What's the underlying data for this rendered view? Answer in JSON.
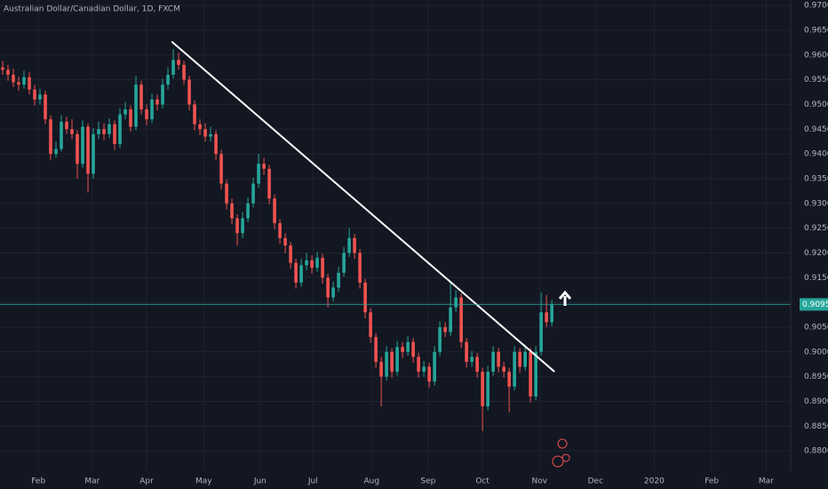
{
  "chart_data": {
    "type": "candlestick",
    "title": "Australian Dollar/Canadian Dollar, 1D, FXCM",
    "up_color": "#26a69a",
    "down_color": "#ef5350",
    "grid": true,
    "xlim": [
      -0.5,
      147.8
    ],
    "ylim": [
      0.8723,
      0.9711
    ],
    "xticks": [
      {
        "value": 6.7,
        "label": "Feb"
      },
      {
        "value": 16.8,
        "label": "Mar"
      },
      {
        "value": 27,
        "label": "Apr"
      },
      {
        "value": 37.7,
        "label": "May"
      },
      {
        "value": 48.3,
        "label": "Jun"
      },
      {
        "value": 58.2,
        "label": "Jul"
      },
      {
        "value": 69.2,
        "label": "Aug"
      },
      {
        "value": 79.8,
        "label": "Sep"
      },
      {
        "value": 90,
        "label": "Oct"
      },
      {
        "value": 100.7,
        "label": "Nov"
      },
      {
        "value": 111.2,
        "label": "Dec"
      },
      {
        "value": 122.2,
        "label": "2020"
      },
      {
        "value": 133,
        "label": "Feb"
      },
      {
        "value": 143.2,
        "label": "Mar"
      }
    ],
    "yticks": [
      {
        "value": 0.97,
        "label": "0.97000"
      },
      {
        "value": 0.965,
        "label": "0.96500"
      },
      {
        "value": 0.96,
        "label": "0.96000"
      },
      {
        "value": 0.955,
        "label": "0.95500"
      },
      {
        "value": 0.95,
        "label": "0.95000"
      },
      {
        "value": 0.945,
        "label": "0.94500"
      },
      {
        "value": 0.94,
        "label": "0.94000"
      },
      {
        "value": 0.935,
        "label": "0.93500"
      },
      {
        "value": 0.93,
        "label": "0.93000"
      },
      {
        "value": 0.925,
        "label": "0.92500"
      },
      {
        "value": 0.92,
        "label": "0.92000"
      },
      {
        "value": 0.915,
        "label": "0.91500"
      },
      {
        "value": 0.91,
        "label": "0.91000"
      },
      {
        "value": 0.905,
        "label": "0.90500"
      },
      {
        "value": 0.9,
        "label": "0.90000"
      },
      {
        "value": 0.895,
        "label": "0.89500"
      },
      {
        "value": 0.89,
        "label": "0.89000"
      },
      {
        "value": 0.885,
        "label": "0.88500"
      },
      {
        "value": 0.88,
        "label": "0.88000"
      }
    ],
    "open": [
      0.9575,
      0.957,
      0.956,
      0.9545,
      0.954,
      0.9555,
      0.953,
      0.951,
      0.952,
      0.947,
      0.94,
      0.941,
      0.9465,
      0.945,
      0.944,
      0.938,
      0.9455,
      0.936,
      0.944,
      0.945,
      0.944,
      0.946,
      0.942,
      0.948,
      0.949,
      0.9455,
      0.954,
      0.949,
      0.947,
      0.951,
      0.95,
      0.954,
      0.956,
      0.959,
      0.958,
      0.955,
      0.95,
      0.946,
      0.945,
      0.9435,
      0.944,
      0.94,
      0.934,
      0.93,
      0.927,
      0.924,
      0.927,
      0.93,
      0.934,
      0.938,
      0.937,
      0.931,
      0.926,
      0.923,
      0.9215,
      0.918,
      0.914,
      0.9175,
      0.9185,
      0.917,
      0.919,
      0.915,
      0.911,
      0.913,
      0.916,
      0.92,
      0.923,
      0.92,
      0.914,
      0.908,
      0.903,
      0.898,
      0.895,
      0.9,
      0.896,
      0.901,
      0.9,
      0.902,
      0.899,
      0.896,
      0.897,
      0.894,
      0.9,
      0.905,
      0.904,
      0.909,
      0.911,
      0.902,
      0.898,
      0.899,
      0.896,
      0.889,
      0.896,
      0.9,
      0.897,
      0.896,
      0.893,
      0.9,
      0.897,
      0.9,
      0.891,
      0.9,
      0.908,
      0.906
    ],
    "high": [
      0.9588,
      0.958,
      0.9572,
      0.9556,
      0.9568,
      0.9565,
      0.954,
      0.9532,
      0.9528,
      0.9478,
      0.9425,
      0.9478,
      0.9475,
      0.947,
      0.9448,
      0.9468,
      0.9462,
      0.9452,
      0.9465,
      0.9462,
      0.9472,
      0.9468,
      0.9492,
      0.9505,
      0.9498,
      0.9558,
      0.9548,
      0.95,
      0.9522,
      0.952,
      0.9552,
      0.9575,
      0.9612,
      0.9605,
      0.9588,
      0.9558,
      0.9508,
      0.947,
      0.9462,
      0.9455,
      0.9448,
      0.9408,
      0.9348,
      0.931,
      0.9278,
      0.9282,
      0.9312,
      0.9352,
      0.94,
      0.9392,
      0.9378,
      0.9318,
      0.9268,
      0.924,
      0.9222,
      0.9188,
      0.9188,
      0.92,
      0.9195,
      0.9202,
      0.9198,
      0.9158,
      0.9142,
      0.9172,
      0.9212,
      0.925,
      0.9238,
      0.9208,
      0.9148,
      0.9088,
      0.9038,
      0.899,
      0.9012,
      0.9008,
      0.9022,
      0.902,
      0.9032,
      0.9028,
      0.8998,
      0.8982,
      0.8978,
      0.9012,
      0.9062,
      0.906,
      0.914,
      0.9125,
      0.9118,
      0.9028,
      0.9002,
      0.8998,
      0.8968,
      0.8972,
      0.9012,
      0.9008,
      0.898,
      0.8968,
      0.9012,
      0.9008,
      0.9015,
      0.9008,
      0.9012,
      0.912,
      0.9115,
      0.9105
    ],
    "low": [
      0.956,
      0.9548,
      0.9535,
      0.9528,
      0.9532,
      0.952,
      0.9498,
      0.95,
      0.946,
      0.9388,
      0.9392,
      0.9405,
      0.944,
      0.943,
      0.935,
      0.9372,
      0.9322,
      0.935,
      0.943,
      0.9428,
      0.9432,
      0.9408,
      0.9412,
      0.947,
      0.9445,
      0.9448,
      0.948,
      0.9458,
      0.9462,
      0.9488,
      0.9492,
      0.953,
      0.9552,
      0.957,
      0.954,
      0.9488,
      0.9448,
      0.9438,
      0.9425,
      0.9425,
      0.9388,
      0.9328,
      0.9288,
      0.9258,
      0.9215,
      0.923,
      0.9262,
      0.9292,
      0.9332,
      0.9358,
      0.9298,
      0.9248,
      0.9218,
      0.92,
      0.9168,
      0.9128,
      0.9132,
      0.9165,
      0.9158,
      0.9162,
      0.9138,
      0.909,
      0.9102,
      0.9122,
      0.9152,
      0.9192,
      0.9188,
      0.9128,
      0.9068,
      0.9018,
      0.8968,
      0.889,
      0.8942,
      0.8948,
      0.8952,
      0.8988,
      0.8992,
      0.8978,
      0.8948,
      0.895,
      0.8928,
      0.8932,
      0.8992,
      0.903,
      0.9032,
      0.908,
      0.9008,
      0.8968,
      0.897,
      0.8948,
      0.884,
      0.8882,
      0.8952,
      0.8958,
      0.8948,
      0.8878,
      0.8922,
      0.8958,
      0.8962,
      0.8898,
      0.8902,
      0.8992,
      0.905,
      0.9052
    ],
    "close": [
      0.957,
      0.956,
      0.9545,
      0.954,
      0.9555,
      0.953,
      0.951,
      0.952,
      0.947,
      0.94,
      0.941,
      0.9465,
      0.945,
      0.944,
      0.938,
      0.9455,
      0.936,
      0.944,
      0.945,
      0.944,
      0.946,
      0.942,
      0.948,
      0.949,
      0.9455,
      0.954,
      0.949,
      0.947,
      0.951,
      0.95,
      0.954,
      0.956,
      0.959,
      0.958,
      0.955,
      0.95,
      0.946,
      0.945,
      0.9435,
      0.944,
      0.94,
      0.934,
      0.93,
      0.927,
      0.924,
      0.927,
      0.93,
      0.934,
      0.938,
      0.937,
      0.931,
      0.926,
      0.923,
      0.9215,
      0.918,
      0.914,
      0.9175,
      0.9185,
      0.917,
      0.919,
      0.915,
      0.911,
      0.913,
      0.916,
      0.92,
      0.923,
      0.92,
      0.914,
      0.908,
      0.903,
      0.898,
      0.895,
      0.9,
      0.896,
      0.901,
      0.9,
      0.902,
      0.899,
      0.896,
      0.897,
      0.894,
      0.9,
      0.905,
      0.904,
      0.909,
      0.911,
      0.902,
      0.898,
      0.899,
      0.896,
      0.889,
      0.896,
      0.9,
      0.897,
      0.896,
      0.893,
      0.9,
      0.897,
      0.9,
      0.891,
      0.9,
      0.908,
      0.906,
      0.90959
    ],
    "trendline": {
      "x": [
        31.7,
        103.5
      ],
      "y": [
        0.9627,
        0.896
      ],
      "color": "#ffffff"
    }
  }
}
